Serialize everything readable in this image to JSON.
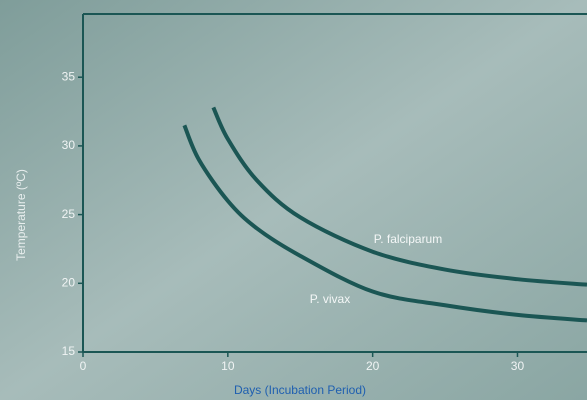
{
  "chart_data": {
    "type": "line",
    "x_label": "Days (Incubation Period)",
    "y_label": "Temperature (ºC)",
    "xlim": [
      0,
      34.8
    ],
    "ylim": [
      15,
      39.6
    ],
    "xticks": [
      0,
      10,
      20,
      30
    ],
    "yticks": [
      15,
      20,
      25,
      30,
      35
    ],
    "series": [
      {
        "name": "P. falciparum",
        "color": "#1b5654",
        "x": [
          9,
          10,
          12,
          15,
          20,
          25,
          30,
          34.8
        ],
        "values": [
          32.8,
          30.5,
          27.5,
          24.8,
          22.3,
          21,
          20.3,
          19.9
        ]
      },
      {
        "name": "P. vivax",
        "color": "#1b5654",
        "x": [
          7,
          8,
          10,
          12,
          15,
          20,
          25,
          30,
          34.8
        ],
        "values": [
          31.5,
          29,
          26,
          24,
          22,
          19.4,
          18.4,
          17.7,
          17.3
        ]
      }
    ]
  }
}
